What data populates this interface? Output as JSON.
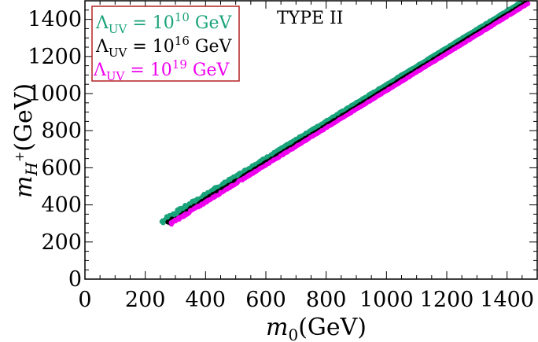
{
  "chart_data": {
    "type": "scatter",
    "title": "",
    "annotation": "TYPE II",
    "xlabel": {
      "base": "m",
      "sub": "0",
      "unit": "(GeV)"
    },
    "ylabel": {
      "base": "m",
      "sub": "H",
      "sup": "+",
      "unit": "(GeV)"
    },
    "xlim": [
      0,
      1500
    ],
    "ylim": [
      0,
      1500
    ],
    "xticks": [
      0,
      200,
      400,
      600,
      800,
      1000,
      1200,
      1400
    ],
    "yticks": [
      0,
      200,
      400,
      600,
      800,
      1000,
      1200,
      1400
    ],
    "grid": false,
    "legend_position": "top-left",
    "series": [
      {
        "name": "Λ_UV = 10^10 GeV",
        "legend": {
          "lambda": "Λ",
          "sub": "UV",
          "eq": " = ",
          "base": "10",
          "exp": "10",
          "unit": " GeV"
        },
        "color": "#1aa37a",
        "band": {
          "x_start": 255,
          "x_end": 1470,
          "y_start": 300,
          "slope": 1.0
        }
      },
      {
        "name": "Λ_UV = 10^16 GeV",
        "legend": {
          "lambda": "Λ",
          "sub": "UV",
          "eq": " = ",
          "base": "10",
          "exp": "16",
          "unit": " GeV"
        },
        "color": "#000000",
        "band": {
          "x_start": 275,
          "x_end": 1480,
          "y_start": 300,
          "slope": 1.0
        }
      },
      {
        "name": "Λ_UV = 10^19 GeV",
        "legend": {
          "lambda": "Λ",
          "sub": "UV",
          "eq": " = ",
          "base": "10",
          "exp": "19",
          "unit": " GeV"
        },
        "color": "#ee00ee",
        "band": {
          "x_start": 285,
          "x_end": 1470,
          "y_start": 300,
          "slope": 1.0
        }
      }
    ]
  }
}
